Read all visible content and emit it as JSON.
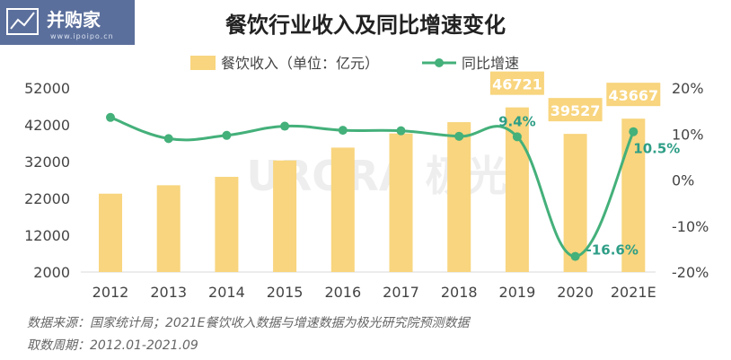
{
  "logo": {
    "brand": "并购家",
    "url": "www.ipoipo.cn"
  },
  "watermark": "URORA 极光",
  "source_line1": "数据来源：国家统计局；2021E餐饮收入数据与增速数据为极光研究院预测数据",
  "source_line2": "取数周期：2012.01-2021.09",
  "colors": {
    "bar": "#f8d57e",
    "line": "#44b07a",
    "label_bg": "#f8d57e",
    "label_text": "#ffffff",
    "pct_text": "#2e9e86"
  },
  "chart_data": {
    "type": "bar",
    "title": "餐饮行业收入及同比增速变化",
    "legend_position": "top-center",
    "categories": [
      "2012",
      "2013",
      "2014",
      "2015",
      "2016",
      "2017",
      "2018",
      "2019",
      "2020",
      "2021E"
    ],
    "series": [
      {
        "name": "餐饮收入（单位：亿元）",
        "type": "bar",
        "axis": "left",
        "values": [
          23283,
          25569,
          27860,
          32310,
          35799,
          39644,
          42716,
          46721,
          39527,
          43667
        ]
      },
      {
        "name": "同比增速",
        "type": "line",
        "axis": "right",
        "values": [
          13.6,
          9.0,
          9.7,
          11.7,
          10.8,
          10.7,
          9.5,
          9.4,
          -16.6,
          10.5
        ]
      }
    ],
    "left_axis": {
      "ylim": [
        2000,
        52000
      ],
      "ticks": [
        "52000",
        "42000",
        "32000",
        "22000",
        "12000",
        "2000"
      ]
    },
    "right_axis": {
      "ylim": [
        -20,
        20
      ],
      "ticks": [
        "20%",
        "10%",
        "0%",
        "-10%",
        "-20%"
      ]
    },
    "bar_labels": [
      {
        "index": 7,
        "text": "46721"
      },
      {
        "index": 8,
        "text": "39527"
      },
      {
        "index": 9,
        "text": "43667"
      }
    ],
    "line_labels": [
      {
        "index": 7,
        "text": "9.4%"
      },
      {
        "index": 8,
        "text": "-16.6%"
      },
      {
        "index": 9,
        "text": "10.5%"
      }
    ]
  }
}
